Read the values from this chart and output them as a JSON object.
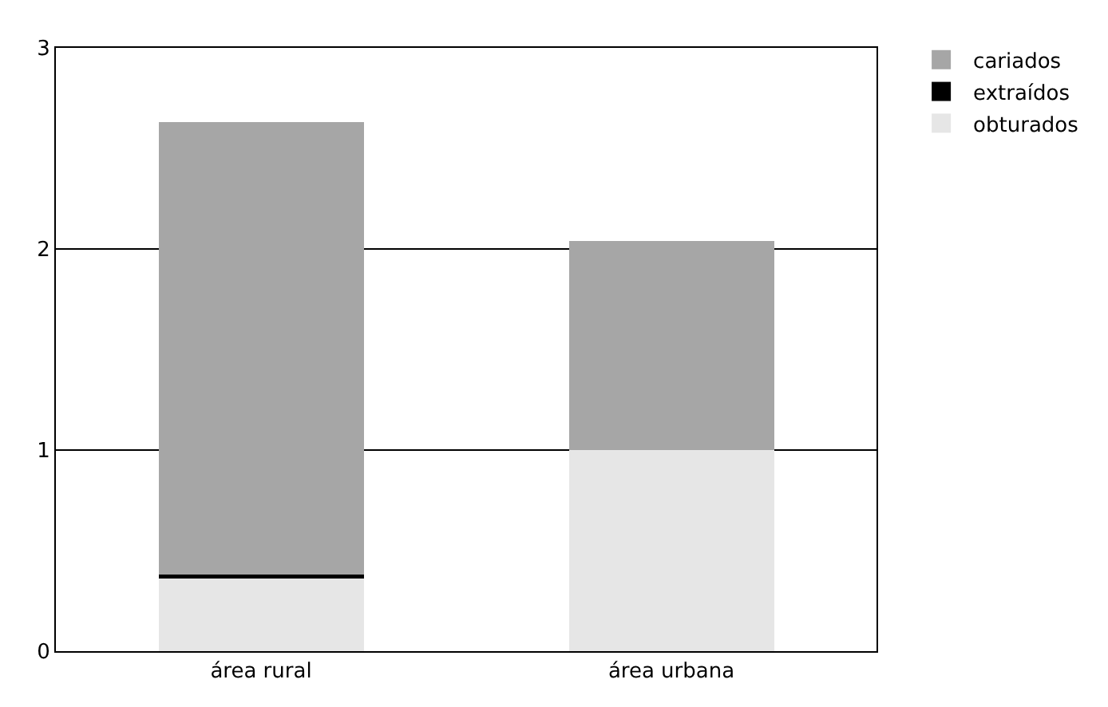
{
  "chart_data": {
    "type": "bar",
    "stacked": true,
    "categories": [
      "área rural",
      "área urbana"
    ],
    "series": [
      {
        "name": "obturados",
        "color": "#e6e6e6",
        "values": [
          0.36,
          1.0
        ]
      },
      {
        "name": "extraídos",
        "color": "#000000",
        "values": [
          0.02,
          0.0
        ]
      },
      {
        "name": "cariados",
        "color": "#a6a6a6",
        "values": [
          2.25,
          1.04
        ]
      }
    ],
    "ylim": [
      0,
      3
    ],
    "yticks": [
      0,
      1,
      2,
      3
    ],
    "grid": "y",
    "legend": "top right"
  }
}
